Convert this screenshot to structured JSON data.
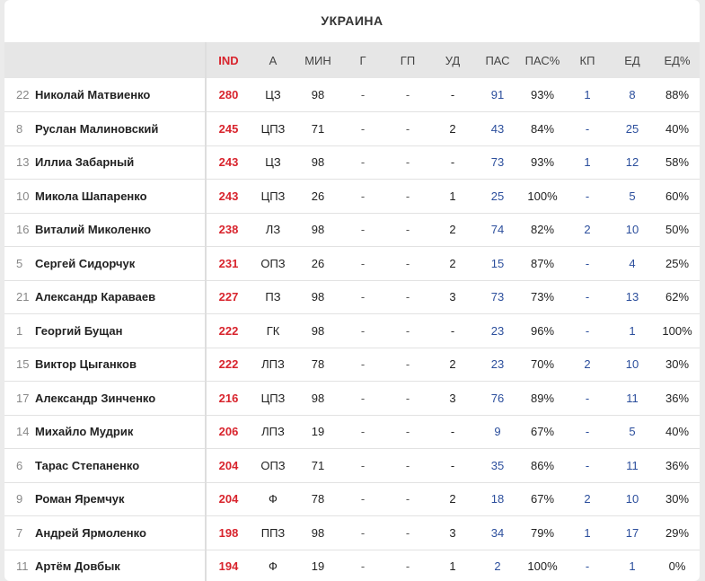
{
  "title": "УКРАИНА",
  "columns": [
    "IND",
    "А",
    "МИН",
    "Г",
    "ГП",
    "УД",
    "ПАС",
    "ПАС%",
    "КП",
    "ЕД",
    "ЕД%"
  ],
  "colors": {
    "ind": "#d8242d",
    "link_blue": "#2b4e9c",
    "header_bg": "#e6e6e6"
  },
  "rows": [
    {
      "num": "22",
      "name": "Николай Матвиенко",
      "ind": "280",
      "pos": "ЦЗ",
      "min": "98",
      "g": "-",
      "gp": "-",
      "ud": "-",
      "pas": "91",
      "pas_pct": "93%",
      "kp": "1",
      "ed": "8",
      "ed_pct": "88%"
    },
    {
      "num": "8",
      "name": "Руслан Малиновский",
      "ind": "245",
      "pos": "ЦПЗ",
      "min": "71",
      "g": "-",
      "gp": "-",
      "ud": "2",
      "pas": "43",
      "pas_pct": "84%",
      "kp": "-",
      "ed": "25",
      "ed_pct": "40%"
    },
    {
      "num": "13",
      "name": "Иллиа Забарный",
      "ind": "243",
      "pos": "ЦЗ",
      "min": "98",
      "g": "-",
      "gp": "-",
      "ud": "-",
      "pas": "73",
      "pas_pct": "93%",
      "kp": "1",
      "ed": "12",
      "ed_pct": "58%"
    },
    {
      "num": "10",
      "name": "Микола Шапаренко",
      "ind": "243",
      "pos": "ЦПЗ",
      "min": "26",
      "g": "-",
      "gp": "-",
      "ud": "1",
      "pas": "25",
      "pas_pct": "100%",
      "kp": "-",
      "ed": "5",
      "ed_pct": "60%"
    },
    {
      "num": "16",
      "name": "Виталий Миколенко",
      "ind": "238",
      "pos": "ЛЗ",
      "min": "98",
      "g": "-",
      "gp": "-",
      "ud": "2",
      "pas": "74",
      "pas_pct": "82%",
      "kp": "2",
      "ed": "10",
      "ed_pct": "50%"
    },
    {
      "num": "5",
      "name": "Сергей Сидорчук",
      "ind": "231",
      "pos": "ОПЗ",
      "min": "26",
      "g": "-",
      "gp": "-",
      "ud": "2",
      "pas": "15",
      "pas_pct": "87%",
      "kp": "-",
      "ed": "4",
      "ed_pct": "25%"
    },
    {
      "num": "21",
      "name": "Александр Караваев",
      "ind": "227",
      "pos": "ПЗ",
      "min": "98",
      "g": "-",
      "gp": "-",
      "ud": "3",
      "pas": "73",
      "pas_pct": "73%",
      "kp": "-",
      "ed": "13",
      "ed_pct": "62%"
    },
    {
      "num": "1",
      "name": "Георгий Бущан",
      "ind": "222",
      "pos": "ГК",
      "min": "98",
      "g": "-",
      "gp": "-",
      "ud": "-",
      "pas": "23",
      "pas_pct": "96%",
      "kp": "-",
      "ed": "1",
      "ed_pct": "100%"
    },
    {
      "num": "15",
      "name": "Виктор Цыганков",
      "ind": "222",
      "pos": "ЛПЗ",
      "min": "78",
      "g": "-",
      "gp": "-",
      "ud": "2",
      "pas": "23",
      "pas_pct": "70%",
      "kp": "2",
      "ed": "10",
      "ed_pct": "30%"
    },
    {
      "num": "17",
      "name": "Александр Зинченко",
      "ind": "216",
      "pos": "ЦПЗ",
      "min": "98",
      "g": "-",
      "gp": "-",
      "ud": "3",
      "pas": "76",
      "pas_pct": "89%",
      "kp": "-",
      "ed": "11",
      "ed_pct": "36%"
    },
    {
      "num": "14",
      "name": "Михайло Мудрик",
      "ind": "206",
      "pos": "ЛПЗ",
      "min": "19",
      "g": "-",
      "gp": "-",
      "ud": "-",
      "pas": "9",
      "pas_pct": "67%",
      "kp": "-",
      "ed": "5",
      "ed_pct": "40%"
    },
    {
      "num": "6",
      "name": "Тарас Степаненко",
      "ind": "204",
      "pos": "ОПЗ",
      "min": "71",
      "g": "-",
      "gp": "-",
      "ud": "-",
      "pas": "35",
      "pas_pct": "86%",
      "kp": "-",
      "ed": "11",
      "ed_pct": "36%"
    },
    {
      "num": "9",
      "name": "Роман Яремчук",
      "ind": "204",
      "pos": "Ф",
      "min": "78",
      "g": "-",
      "gp": "-",
      "ud": "2",
      "pas": "18",
      "pas_pct": "67%",
      "kp": "2",
      "ed": "10",
      "ed_pct": "30%"
    },
    {
      "num": "7",
      "name": "Андрей Ярмоленко",
      "ind": "198",
      "pos": "ППЗ",
      "min": "98",
      "g": "-",
      "gp": "-",
      "ud": "3",
      "pas": "34",
      "pas_pct": "79%",
      "kp": "1",
      "ed": "17",
      "ed_pct": "29%"
    },
    {
      "num": "11",
      "name": "Артём Довбык",
      "ind": "194",
      "pos": "Ф",
      "min": "19",
      "g": "-",
      "gp": "-",
      "ud": "1",
      "pas": "2",
      "pas_pct": "100%",
      "kp": "-",
      "ed": "1",
      "ed_pct": "0%"
    }
  ]
}
